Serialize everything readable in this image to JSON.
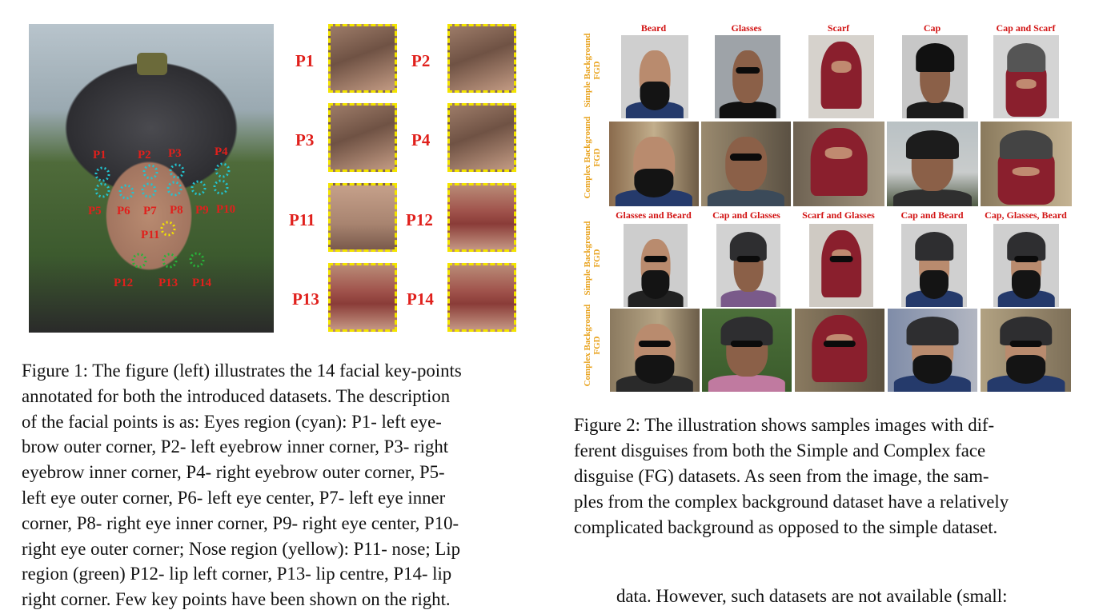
{
  "figure1": {
    "keypoint_labels": [
      "P1",
      "P2",
      "P3",
      "P4",
      "P5",
      "P6",
      "P7",
      "P8",
      "P9",
      "P10",
      "P11",
      "P12",
      "P13",
      "P14"
    ],
    "crop_labels": [
      "P1",
      "P2",
      "P3",
      "P4",
      "P11",
      "P12",
      "P13",
      "P14"
    ],
    "region_colors": {
      "eyes": "#22c4d0",
      "nose": "#f3e400",
      "lip": "#27b43a",
      "label": "#e0201c"
    },
    "caption_lines": [
      "Figure 1: The figure (left) illustrates the 14 facial key-points",
      "annotated for both the introduced datasets. The description",
      "of the facial points is as: Eyes region (cyan): P1- left eye-",
      "brow outer corner, P2- left eyebrow inner corner, P3- right",
      "eyebrow inner corner, P4- right eyebrow outer corner, P5-",
      "left eye outer corner, P6- left eye center, P7- left eye inner",
      "corner, P8- right eye inner corner, P9- right eye center, P10-",
      "right eye outer corner; Nose region (yellow): P11- nose; Lip",
      "region (green) P12- lip left corner, P13- lip centre, P14- lip",
      "right corner. Few key points have been shown on the right."
    ]
  },
  "figure2": {
    "top_titles": [
      "Beard",
      "Glasses",
      "Scarf",
      "Cap",
      "Cap and Scarf"
    ],
    "middle_titles": [
      "Glasses and Beard",
      "Cap and Glasses",
      "Scarf and Glasses",
      "Cap and Beard",
      "Cap, Glasses, Beard"
    ],
    "row_labels": [
      [
        "Simple Background",
        "FGD"
      ],
      [
        "Complex Background",
        "FGD"
      ],
      [
        "Simple Background",
        "FGD"
      ],
      [
        "Complex Background",
        "FGD"
      ]
    ],
    "caption_lines": [
      "Figure 2: The illustration shows samples images with dif-",
      "ferent disguises from both the Simple and Complex face",
      "disguise (FG) datasets. As seen from the image, the sam-",
      "ples from the complex background dataset have a relatively",
      "complicated background as opposed to the simple dataset."
    ]
  },
  "body_text": "data. However, such datasets are not available (small:"
}
